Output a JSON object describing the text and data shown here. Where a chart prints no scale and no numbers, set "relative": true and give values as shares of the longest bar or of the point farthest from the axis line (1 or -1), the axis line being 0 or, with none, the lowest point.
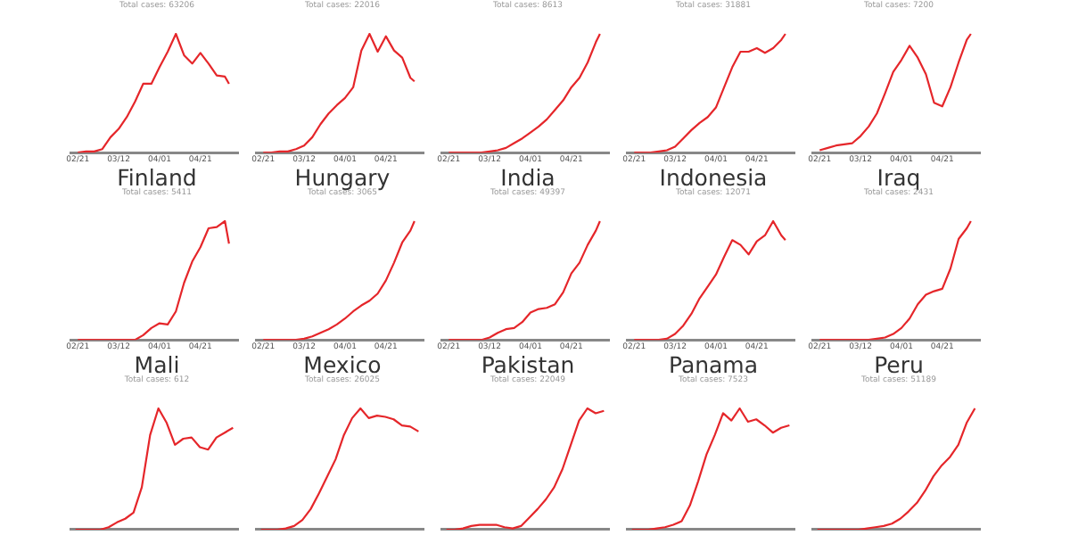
{
  "chart_data": [
    {
      "type": "line",
      "subtitle": "Total cases: 63206",
      "x": [
        "--02-21",
        "--02-25",
        "--02-29",
        "--03-04",
        "--03-08",
        "--03-12",
        "--03-16",
        "--03-20",
        "--03-24",
        "--03-28",
        "--04-01",
        "--04-05",
        "--04-09",
        "--04-13",
        "--04-17",
        "--04-21",
        "--04-25",
        "--04-29",
        "--05-03",
        "--05-05"
      ],
      "series": [
        {
          "color": "#e5262a",
          "values": [
            0,
            0.01,
            0.01,
            0.03,
            0.13,
            0.2,
            0.3,
            0.43,
            0.58,
            0.58,
            0.72,
            0.85,
            1.0,
            0.82,
            0.75,
            0.84,
            0.75,
            0.65,
            0.64,
            0.58
          ]
        }
      ],
      "relative": true,
      "xlim": [
        "--02-18",
        "--05-09"
      ],
      "xticks": [
        {
          "value": "--02-21",
          "label": "02/21"
        },
        {
          "value": "--03-12",
          "label": "03/12"
        },
        {
          "value": "--04-01",
          "label": "04/01"
        },
        {
          "value": "--04-21",
          "label": "04/21"
        }
      ],
      "tick_labels": "x",
      "marker": "none",
      "grid": false
    },
    {
      "type": "line",
      "subtitle": "Total cases: 22016",
      "x": [
        "--02-21",
        "--02-25",
        "--02-29",
        "--03-04",
        "--03-08",
        "--03-12",
        "--03-16",
        "--03-20",
        "--03-24",
        "--03-28",
        "--04-01",
        "--04-05",
        "--04-09",
        "--04-13",
        "--04-17",
        "--04-21",
        "--04-25",
        "--04-29",
        "--05-03",
        "--05-05"
      ],
      "series": [
        {
          "color": "#e5262a",
          "values": [
            0,
            0,
            0.01,
            0.01,
            0.03,
            0.06,
            0.13,
            0.24,
            0.33,
            0.4,
            0.46,
            0.55,
            0.86,
            1.0,
            0.85,
            0.98,
            0.86,
            0.8,
            0.63,
            0.6
          ]
        }
      ],
      "relative": true,
      "xlim": [
        "--02-18",
        "--05-09"
      ],
      "xticks": [
        {
          "value": "--02-21",
          "label": "02/21"
        },
        {
          "value": "--03-12",
          "label": "03/12"
        },
        {
          "value": "--04-01",
          "label": "04/01"
        },
        {
          "value": "--04-21",
          "label": "04/21"
        }
      ],
      "tick_labels": "x",
      "marker": "none",
      "grid": false
    },
    {
      "type": "line",
      "subtitle": "Total cases: 8613",
      "x": [
        "--02-21",
        "--02-25",
        "--02-29",
        "--03-04",
        "--03-08",
        "--03-12",
        "--03-16",
        "--03-20",
        "--03-24",
        "--03-28",
        "--04-01",
        "--04-05",
        "--04-09",
        "--04-13",
        "--04-17",
        "--04-21",
        "--04-25",
        "--04-29",
        "--05-03",
        "--05-05"
      ],
      "series": [
        {
          "color": "#e5262a",
          "values": [
            0,
            0,
            0,
            0,
            0,
            0.01,
            0.02,
            0.04,
            0.08,
            0.12,
            0.17,
            0.22,
            0.28,
            0.36,
            0.44,
            0.55,
            0.63,
            0.76,
            0.93,
            1.0
          ]
        }
      ],
      "relative": true,
      "xlim": [
        "--02-18",
        "--05-09"
      ],
      "xticks": [
        {
          "value": "--02-21",
          "label": "02/21"
        },
        {
          "value": "--03-12",
          "label": "03/12"
        },
        {
          "value": "--04-01",
          "label": "04/01"
        },
        {
          "value": "--04-21",
          "label": "04/21"
        }
      ],
      "tick_labels": "x",
      "marker": "none",
      "grid": false
    },
    {
      "type": "line",
      "subtitle": "Total cases: 31881",
      "x": [
        "--02-21",
        "--02-25",
        "--02-29",
        "--03-04",
        "--03-08",
        "--03-12",
        "--03-16",
        "--03-20",
        "--03-24",
        "--03-28",
        "--04-01",
        "--04-05",
        "--04-09",
        "--04-13",
        "--04-17",
        "--04-21",
        "--04-25",
        "--04-29",
        "--05-03",
        "--05-05"
      ],
      "series": [
        {
          "color": "#e5262a",
          "values": [
            0,
            0,
            0,
            0.01,
            0.02,
            0.05,
            0.12,
            0.19,
            0.25,
            0.3,
            0.38,
            0.55,
            0.72,
            0.85,
            0.85,
            0.88,
            0.84,
            0.88,
            0.95,
            1.0
          ]
        }
      ],
      "relative": true,
      "xlim": [
        "--02-18",
        "--05-09"
      ],
      "xticks": [
        {
          "value": "--02-21",
          "label": "02/21"
        },
        {
          "value": "--03-12",
          "label": "03/12"
        },
        {
          "value": "--04-01",
          "label": "04/01"
        },
        {
          "value": "--04-21",
          "label": "04/21"
        }
      ],
      "tick_labels": "x",
      "marker": "none",
      "grid": false
    },
    {
      "type": "line",
      "subtitle": "Total cases: 7200",
      "x": [
        "--02-21",
        "--02-25",
        "--02-29",
        "--03-04",
        "--03-08",
        "--03-12",
        "--03-16",
        "--03-20",
        "--03-24",
        "--03-28",
        "--04-01",
        "--04-05",
        "--04-09",
        "--04-13",
        "--04-17",
        "--04-21",
        "--04-25",
        "--04-29",
        "--05-03",
        "--05-05"
      ],
      "series": [
        {
          "color": "#e5262a",
          "values": [
            0.02,
            0.04,
            0.06,
            0.07,
            0.08,
            0.14,
            0.22,
            0.33,
            0.5,
            0.68,
            0.78,
            0.9,
            0.8,
            0.66,
            0.42,
            0.39,
            0.55,
            0.76,
            0.95,
            1.0
          ]
        }
      ],
      "relative": true,
      "xlim": [
        "--02-18",
        "--05-09"
      ],
      "xticks": [
        {
          "value": "--02-21",
          "label": "02/21"
        },
        {
          "value": "--03-12",
          "label": "03/12"
        },
        {
          "value": "--04-01",
          "label": "04/01"
        },
        {
          "value": "--04-21",
          "label": "04/21"
        }
      ],
      "tick_labels": "x",
      "marker": "none",
      "grid": false
    },
    {
      "type": "line",
      "title": "Finland",
      "subtitle": "Total cases: 5411",
      "x": [
        "--02-21",
        "--02-25",
        "--02-29",
        "--03-04",
        "--03-08",
        "--03-12",
        "--03-16",
        "--03-20",
        "--03-24",
        "--03-28",
        "--04-01",
        "--04-05",
        "--04-09",
        "--04-13",
        "--04-17",
        "--04-21",
        "--04-25",
        "--04-29",
        "--05-03",
        "--05-05"
      ],
      "series": [
        {
          "color": "#e5262a",
          "values": [
            0,
            0,
            0,
            0,
            0,
            0,
            0,
            0,
            0.04,
            0.1,
            0.14,
            0.13,
            0.24,
            0.48,
            0.66,
            0.78,
            0.94,
            0.95,
            1.0,
            0.81
          ]
        }
      ],
      "relative": true,
      "xlim": [
        "--02-18",
        "--05-09"
      ],
      "xticks": [
        {
          "value": "--02-21",
          "label": "02/21"
        },
        {
          "value": "--03-12",
          "label": "03/12"
        },
        {
          "value": "--04-01",
          "label": "04/01"
        },
        {
          "value": "--04-21",
          "label": "04/21"
        }
      ],
      "tick_labels": "x",
      "marker": "none",
      "grid": false
    },
    {
      "type": "line",
      "title": "Hungary",
      "subtitle": "Total cases: 3065",
      "x": [
        "--02-21",
        "--02-25",
        "--02-29",
        "--03-04",
        "--03-08",
        "--03-12",
        "--03-16",
        "--03-20",
        "--03-24",
        "--03-28",
        "--04-01",
        "--04-05",
        "--04-09",
        "--04-13",
        "--04-17",
        "--04-21",
        "--04-25",
        "--04-29",
        "--05-03",
        "--05-05"
      ],
      "series": [
        {
          "color": "#e5262a",
          "values": [
            0,
            0,
            0,
            0,
            0,
            0.01,
            0.03,
            0.06,
            0.09,
            0.13,
            0.18,
            0.24,
            0.29,
            0.33,
            0.39,
            0.5,
            0.65,
            0.82,
            0.92,
            1.0
          ]
        }
      ],
      "relative": true,
      "xlim": [
        "--02-18",
        "--05-09"
      ],
      "xticks": [
        {
          "value": "--02-21",
          "label": "02/21"
        },
        {
          "value": "--03-12",
          "label": "03/12"
        },
        {
          "value": "--04-01",
          "label": "04/01"
        },
        {
          "value": "--04-21",
          "label": "04/21"
        }
      ],
      "tick_labels": "x",
      "marker": "none",
      "grid": false
    },
    {
      "type": "line",
      "title": "India",
      "subtitle": "Total cases: 49397",
      "x": [
        "--02-21",
        "--02-25",
        "--02-29",
        "--03-04",
        "--03-08",
        "--03-12",
        "--03-16",
        "--03-20",
        "--03-24",
        "--03-28",
        "--04-01",
        "--04-05",
        "--04-09",
        "--04-13",
        "--04-17",
        "--04-21",
        "--04-25",
        "--04-29",
        "--05-03",
        "--05-05"
      ],
      "series": [
        {
          "color": "#e5262a",
          "values": [
            0,
            0,
            0,
            0,
            0,
            0.02,
            0.06,
            0.09,
            0.1,
            0.15,
            0.23,
            0.26,
            0.27,
            0.3,
            0.4,
            0.56,
            0.65,
            0.8,
            0.92,
            1.0
          ]
        }
      ],
      "relative": true,
      "xlim": [
        "--02-18",
        "--05-09"
      ],
      "xticks": [
        {
          "value": "--02-21",
          "label": "02/21"
        },
        {
          "value": "--03-12",
          "label": "03/12"
        },
        {
          "value": "--04-01",
          "label": "04/01"
        },
        {
          "value": "--04-21",
          "label": "04/21"
        }
      ],
      "tick_labels": "x",
      "marker": "none",
      "grid": false
    },
    {
      "type": "line",
      "title": "Indonesia",
      "subtitle": "Total cases: 12071",
      "x": [
        "--02-21",
        "--02-25",
        "--02-29",
        "--03-04",
        "--03-08",
        "--03-12",
        "--03-16",
        "--03-20",
        "--03-24",
        "--03-28",
        "--04-01",
        "--04-05",
        "--04-09",
        "--04-13",
        "--04-17",
        "--04-21",
        "--04-25",
        "--04-29",
        "--05-03",
        "--05-05"
      ],
      "series": [
        {
          "color": "#e5262a",
          "values": [
            0,
            0,
            0,
            0,
            0.01,
            0.05,
            0.12,
            0.22,
            0.35,
            0.45,
            0.55,
            0.7,
            0.84,
            0.8,
            0.72,
            0.83,
            0.88,
            1.0,
            0.88,
            0.84
          ]
        }
      ],
      "relative": true,
      "xlim": [
        "--02-18",
        "--05-09"
      ],
      "xticks": [
        {
          "value": "--02-21",
          "label": "02/21"
        },
        {
          "value": "--03-12",
          "label": "03/12"
        },
        {
          "value": "--04-01",
          "label": "04/01"
        },
        {
          "value": "--04-21",
          "label": "04/21"
        }
      ],
      "tick_labels": "x",
      "marker": "none",
      "grid": false
    },
    {
      "type": "line",
      "title": "Iraq",
      "subtitle": "Total cases: 2431",
      "x": [
        "--02-21",
        "--02-25",
        "--02-29",
        "--03-04",
        "--03-08",
        "--03-12",
        "--03-16",
        "--03-20",
        "--03-24",
        "--03-28",
        "--04-01",
        "--04-05",
        "--04-09",
        "--04-13",
        "--04-17",
        "--04-21",
        "--04-25",
        "--04-29",
        "--05-03",
        "--05-05"
      ],
      "series": [
        {
          "color": "#e5262a",
          "values": [
            0,
            0,
            0,
            0,
            0,
            0,
            0,
            0.01,
            0.02,
            0.05,
            0.1,
            0.18,
            0.3,
            0.38,
            0.41,
            0.43,
            0.6,
            0.85,
            0.94,
            1.0
          ]
        }
      ],
      "relative": true,
      "xlim": [
        "--02-18",
        "--05-09"
      ],
      "xticks": [
        {
          "value": "--02-21",
          "label": "02/21"
        },
        {
          "value": "--03-12",
          "label": "03/12"
        },
        {
          "value": "--04-01",
          "label": "04/01"
        },
        {
          "value": "--04-21",
          "label": "04/21"
        }
      ],
      "tick_labels": "x",
      "marker": "none",
      "grid": false
    },
    {
      "type": "line",
      "title": "Mali",
      "subtitle": "Total cases: 612",
      "categories": [
        null,
        null,
        null,
        null,
        null,
        null,
        null,
        null,
        null,
        null,
        null,
        null,
        null,
        null,
        null,
        null,
        null,
        null,
        null,
        null
      ],
      "series": [
        {
          "color": "#e5262a",
          "values": [
            0,
            0,
            0,
            0,
            0.02,
            0.06,
            0.09,
            0.14,
            0.35,
            0.78,
            1.0,
            0.88,
            0.7,
            0.75,
            0.76,
            0.68,
            0.66,
            0.76,
            0.8,
            0.84
          ]
        }
      ],
      "relative": true,
      "tick_labels": false,
      "marker": "none",
      "grid": false
    },
    {
      "type": "line",
      "title": "Mexico",
      "subtitle": "Total cases: 26025",
      "categories": [
        null,
        null,
        null,
        null,
        null,
        null,
        null,
        null,
        null,
        null,
        null,
        null,
        null,
        null,
        null,
        null,
        null,
        null,
        null,
        null
      ],
      "series": [
        {
          "color": "#e5262a",
          "values": [
            0,
            0,
            0,
            0.01,
            0.03,
            0.08,
            0.17,
            0.3,
            0.44,
            0.58,
            0.78,
            0.92,
            1.0,
            0.92,
            0.94,
            0.93,
            0.91,
            0.86,
            0.85,
            0.81
          ]
        }
      ],
      "relative": true,
      "tick_labels": false,
      "marker": "none",
      "grid": false
    },
    {
      "type": "line",
      "title": "Pakistan",
      "subtitle": "Total cases: 22049",
      "categories": [
        null,
        null,
        null,
        null,
        null,
        null,
        null,
        null,
        null,
        null,
        null,
        null,
        null,
        null,
        null,
        null,
        null,
        null,
        null,
        null
      ],
      "series": [
        {
          "color": "#e5262a",
          "values": [
            0,
            0,
            0.01,
            0.03,
            0.04,
            0.04,
            0.04,
            0.02,
            0.01,
            0.03,
            0.1,
            0.17,
            0.25,
            0.35,
            0.5,
            0.7,
            0.9,
            1.0,
            0.96,
            0.98
          ]
        }
      ],
      "relative": true,
      "tick_labels": false,
      "marker": "none",
      "grid": false
    },
    {
      "type": "line",
      "title": "Panama",
      "subtitle": "Total cases: 7523",
      "categories": [
        null,
        null,
        null,
        null,
        null,
        null,
        null,
        null,
        null,
        null,
        null,
        null,
        null,
        null,
        null,
        null,
        null,
        null,
        null,
        null
      ],
      "series": [
        {
          "color": "#e5262a",
          "values": [
            0,
            0,
            0,
            0.01,
            0.02,
            0.04,
            0.07,
            0.2,
            0.4,
            0.62,
            0.78,
            0.96,
            0.9,
            1.0,
            0.89,
            0.91,
            0.86,
            0.8,
            0.84,
            0.86
          ]
        }
      ],
      "relative": true,
      "tick_labels": false,
      "marker": "none",
      "grid": false
    },
    {
      "type": "line",
      "title": "Peru",
      "subtitle": "Total cases: 51189",
      "categories": [
        null,
        null,
        null,
        null,
        null,
        null,
        null,
        null,
        null,
        null,
        null,
        null,
        null,
        null,
        null,
        null,
        null,
        null,
        null,
        null
      ],
      "series": [
        {
          "color": "#e5262a",
          "values": [
            0,
            0,
            0,
            0,
            0,
            0,
            0.01,
            0.02,
            0.03,
            0.05,
            0.09,
            0.15,
            0.22,
            0.32,
            0.44,
            0.53,
            0.6,
            0.7,
            0.88,
            1.0
          ]
        }
      ],
      "relative": true,
      "tick_labels": false,
      "marker": "none",
      "grid": false
    }
  ]
}
